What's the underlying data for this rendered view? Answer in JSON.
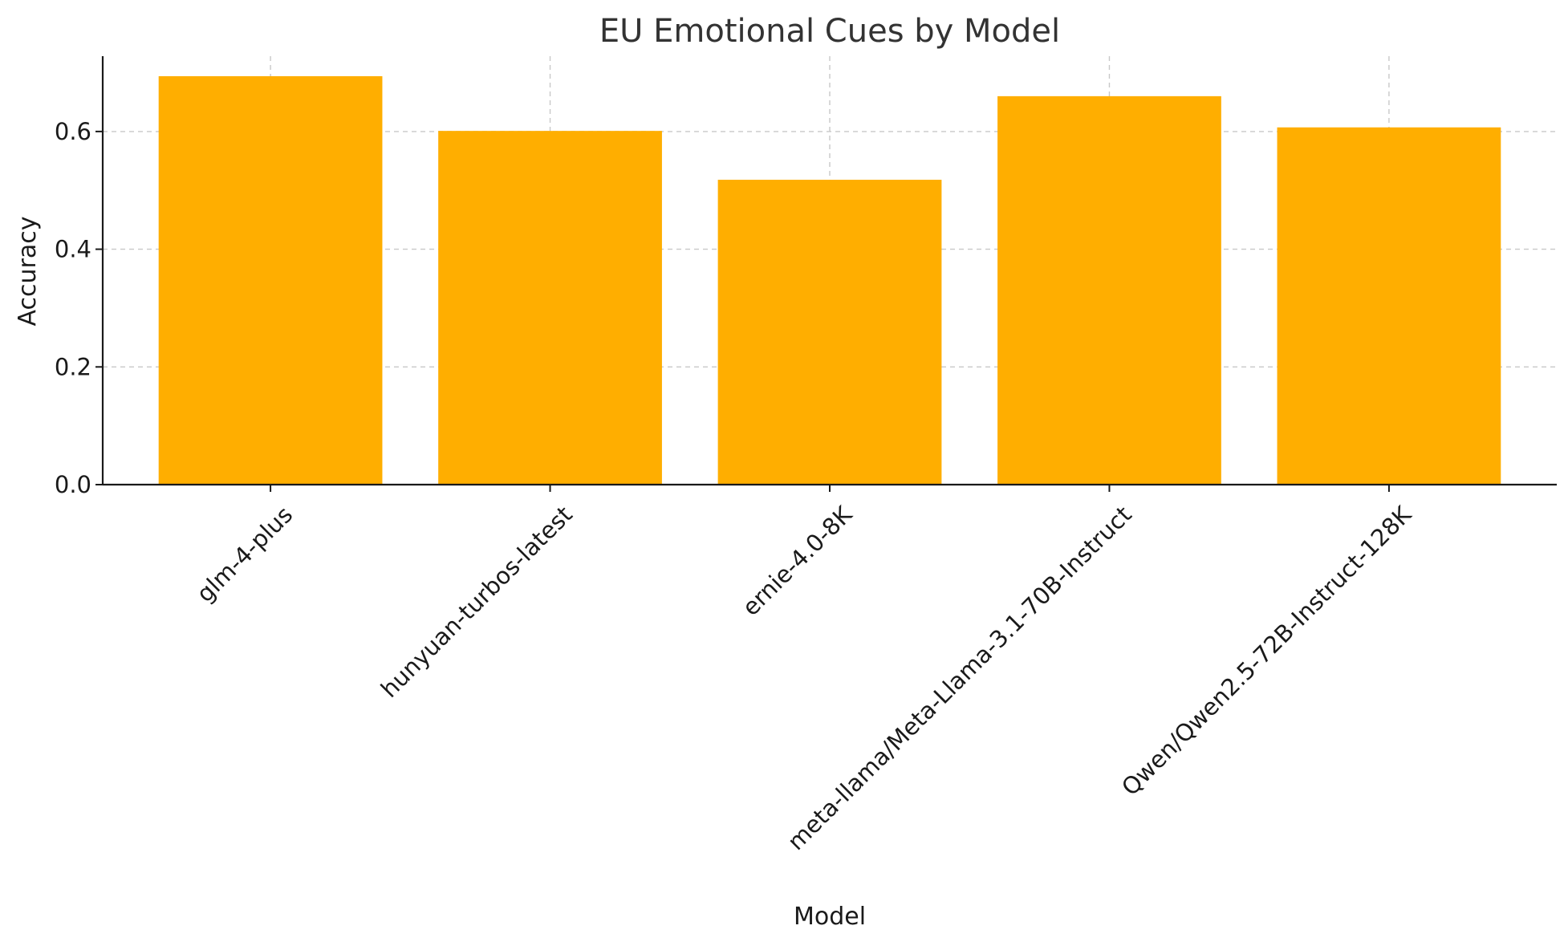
{
  "chart_data": {
    "type": "bar",
    "title": "EU Emotional Cues by Model",
    "xlabel": "Model",
    "ylabel": "Accuracy",
    "categories": [
      "glm-4-plus",
      "hunyuan-turbos-latest",
      "ernie-4.0-8K",
      "meta-llama/Meta-Llama-3.1-70B-Instruct",
      "Qwen/Qwen2.5-72B-Instruct-128K"
    ],
    "values": [
      0.694,
      0.601,
      0.518,
      0.66,
      0.607
    ],
    "ylim": [
      0,
      0.728
    ],
    "yticks": [
      0.0,
      0.2,
      0.4,
      0.6
    ],
    "ytick_labels": [
      "0.0",
      "0.2",
      "0.4",
      "0.6"
    ],
    "grid": true,
    "bar_color": "#FFAE00",
    "xtick_rotation_deg": 45
  }
}
